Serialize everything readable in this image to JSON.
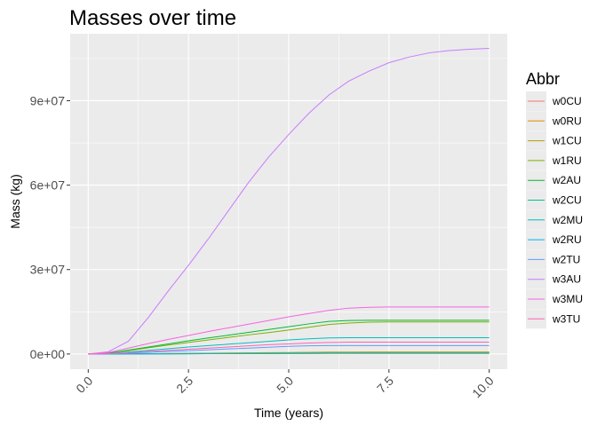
{
  "chart_data": {
    "type": "line",
    "title": "Masses over time",
    "xlabel": "Time (years)",
    "ylabel": "Mass (kg)",
    "xlim": [
      -0.45,
      10.45
    ],
    "ylim": [
      -5400000,
      113800000
    ],
    "x_ticks": [
      0,
      2.5,
      5,
      7.5,
      10
    ],
    "x_tick_labels": [
      "0.0",
      "2.5",
      "5.0",
      "7.5",
      "10.0"
    ],
    "y_ticks": [
      0,
      30000000,
      60000000,
      90000000
    ],
    "y_tick_labels": [
      "0e+00",
      "3e+07",
      "6e+07",
      "9e+07"
    ],
    "grid": true,
    "legend_position": "right",
    "legend_title": "Abbr",
    "x": [
      0,
      0.5,
      1,
      1.5,
      2,
      2.5,
      3,
      3.5,
      4,
      4.5,
      5,
      5.5,
      6,
      6.5,
      7,
      7.5,
      8,
      8.5,
      9,
      9.5,
      10
    ],
    "series": [
      {
        "name": "w0CU",
        "color": "#F8766D",
        "values": [
          0,
          0,
          30000,
          70000,
          110000,
          150000,
          180000,
          210000,
          240000,
          270000,
          300000,
          330000,
          360000,
          380000,
          390000,
          400000,
          400000,
          400000,
          400000,
          400000,
          400000
        ]
      },
      {
        "name": "w0RU",
        "color": "#DE8C00",
        "values": [
          0,
          0,
          40000,
          90000,
          140000,
          190000,
          240000,
          290000,
          340000,
          390000,
          440000,
          490000,
          540000,
          570000,
          590000,
          600000,
          600000,
          600000,
          600000,
          600000,
          600000
        ]
      },
      {
        "name": "w1CU",
        "color": "#B79F00",
        "values": [
          0,
          0,
          50000,
          110000,
          170000,
          230000,
          290000,
          350000,
          410000,
          470000,
          530000,
          590000,
          650000,
          690000,
          710000,
          720000,
          720000,
          720000,
          720000,
          720000,
          720000
        ]
      },
      {
        "name": "w1RU",
        "color": "#7CAE00",
        "values": [
          0,
          300000,
          1200000,
          2200000,
          3200000,
          4100000,
          5000000,
          5900000,
          6800000,
          7600000,
          8500000,
          9500000,
          10500000,
          11000000,
          11300000,
          11400000,
          11400000,
          11400000,
          11400000,
          11400000,
          11400000
        ]
      },
      {
        "name": "w2AU",
        "color": "#00BA38",
        "values": [
          0,
          300000,
          1400000,
          2500000,
          3600000,
          4700000,
          5700000,
          6700000,
          7700000,
          8700000,
          9700000,
          10700000,
          11600000,
          11900000,
          12000000,
          12000000,
          12000000,
          12000000,
          12000000,
          12000000,
          12000000
        ]
      },
      {
        "name": "w2CU",
        "color": "#00C08B",
        "values": [
          0,
          0,
          20000,
          40000,
          60000,
          80000,
          100000,
          120000,
          140000,
          160000,
          180000,
          200000,
          220000,
          230000,
          240000,
          240000,
          240000,
          240000,
          240000,
          240000,
          240000
        ]
      },
      {
        "name": "w2MU",
        "color": "#00BFC4",
        "values": [
          0,
          100000,
          700000,
          1300000,
          1900000,
          2500000,
          3000000,
          3500000,
          4000000,
          4500000,
          5000000,
          5400000,
          5700000,
          5800000,
          5800000,
          5800000,
          5800000,
          5800000,
          5800000,
          5800000,
          5800000
        ]
      },
      {
        "name": "w2RU",
        "color": "#00B4F0",
        "values": [
          0,
          0,
          20000,
          40000,
          60000,
          80000,
          100000,
          120000,
          140000,
          160000,
          180000,
          200000,
          220000,
          230000,
          230000,
          230000,
          230000,
          230000,
          230000,
          230000,
          230000
        ]
      },
      {
        "name": "w2TU",
        "color": "#619CFF",
        "values": [
          0,
          50000,
          300000,
          600000,
          900000,
          1200000,
          1500000,
          1800000,
          2100000,
          2400000,
          2700000,
          2900000,
          3000000,
          3000000,
          3000000,
          3000000,
          3000000,
          3000000,
          3000000,
          3000000,
          3000000
        ]
      },
      {
        "name": "w3AU",
        "color": "#C77CFF",
        "values": [
          0,
          800000,
          4500000,
          13000000,
          22500000,
          31500000,
          41000000,
          51000000,
          61000000,
          70000000,
          78000000,
          85500000,
          92000000,
          97000000,
          100500000,
          103500000,
          105500000,
          107000000,
          107800000,
          108300000,
          108600000
        ]
      },
      {
        "name": "w3MU",
        "color": "#F564E3",
        "values": [
          0,
          500000,
          2100000,
          3700000,
          5200000,
          6600000,
          8000000,
          9300000,
          10600000,
          11900000,
          13200000,
          14400000,
          15500000,
          16300000,
          16600000,
          16700000,
          16700000,
          16700000,
          16700000,
          16700000,
          16700000
        ]
      },
      {
        "name": "w3TU",
        "color": "#FF64B0",
        "values": [
          0,
          100000,
          500000,
          900000,
          1300000,
          1700000,
          2100000,
          2500000,
          2900000,
          3300000,
          3600000,
          3900000,
          4100000,
          4200000,
          4200000,
          4200000,
          4200000,
          4200000,
          4200000,
          4200000,
          4200000
        ]
      }
    ]
  }
}
